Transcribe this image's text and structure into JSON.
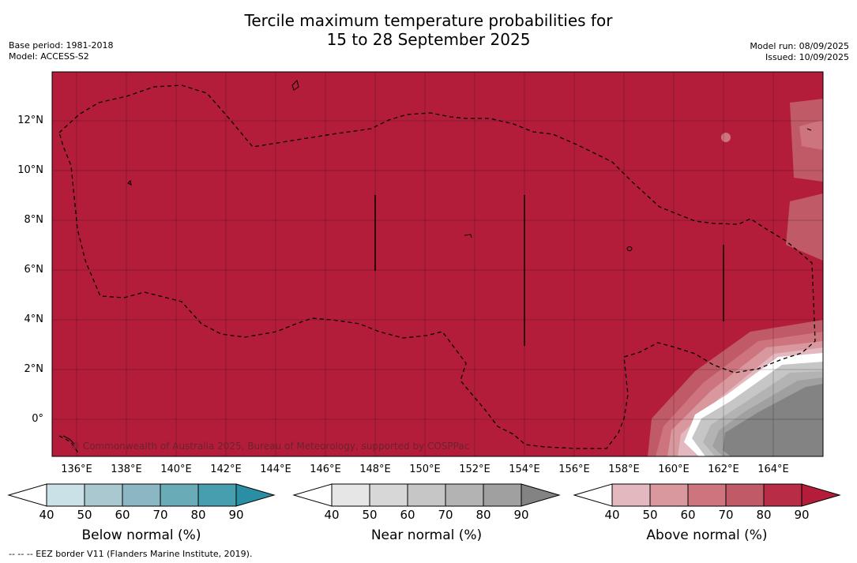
{
  "title": {
    "line1": "Tercile maximum temperature probabilities for",
    "line2": "15 to 28 September 2025"
  },
  "meta_left": {
    "base_period": "Base period: 1981-2018",
    "model": "Model: ACCESS-S2"
  },
  "meta_right": {
    "model_run": "Model run: 08/09/2025",
    "issued": "Issued: 10/09/2025"
  },
  "map": {
    "y_ticks": [
      "12°N",
      "10°N",
      "8°N",
      "6°N",
      "4°N",
      "2°N",
      "0°"
    ],
    "x_ticks": [
      "136°E",
      "138°E",
      "140°E",
      "142°E",
      "144°E",
      "146°E",
      "148°E",
      "150°E",
      "152°E",
      "154°E",
      "156°E",
      "158°E",
      "160°E",
      "162°E",
      "164°E"
    ],
    "copyright": "© Commonwealth of Australia 2025, Bureau of Meteorology, supported by COSPPac",
    "colors": {
      "above_90": "#b31d3a",
      "near_normal_max": "#838383",
      "boundary_white": "#ffffff"
    }
  },
  "colorbars": [
    {
      "label": "Below normal (%)",
      "ticks": [
        "40",
        "50",
        "60",
        "70",
        "80",
        "90"
      ],
      "colors": [
        "#ffffff",
        "#c9e1e7",
        "#a9c8cf",
        "#8bb6c3",
        "#6aabb8",
        "#479eaf",
        "#2a8fa5"
      ]
    },
    {
      "label": "Near normal (%)",
      "ticks": [
        "40",
        "50",
        "60",
        "70",
        "80",
        "90"
      ],
      "colors": [
        "#ffffff",
        "#e6e6e6",
        "#d7d7d7",
        "#c6c6c6",
        "#b3b3b3",
        "#a0a0a0",
        "#838383"
      ]
    },
    {
      "label": "Above normal (%)",
      "ticks": [
        "40",
        "50",
        "60",
        "70",
        "80",
        "90"
      ],
      "colors": [
        "#ffffff",
        "#e3b9bf",
        "#d9979e",
        "#cd747e",
        "#c15a67",
        "#b92c45",
        "#b31d3a"
      ]
    }
  ],
  "footer": "--  --  -- EEZ border V11 (Flanders Marine Institute, 2019)."
}
